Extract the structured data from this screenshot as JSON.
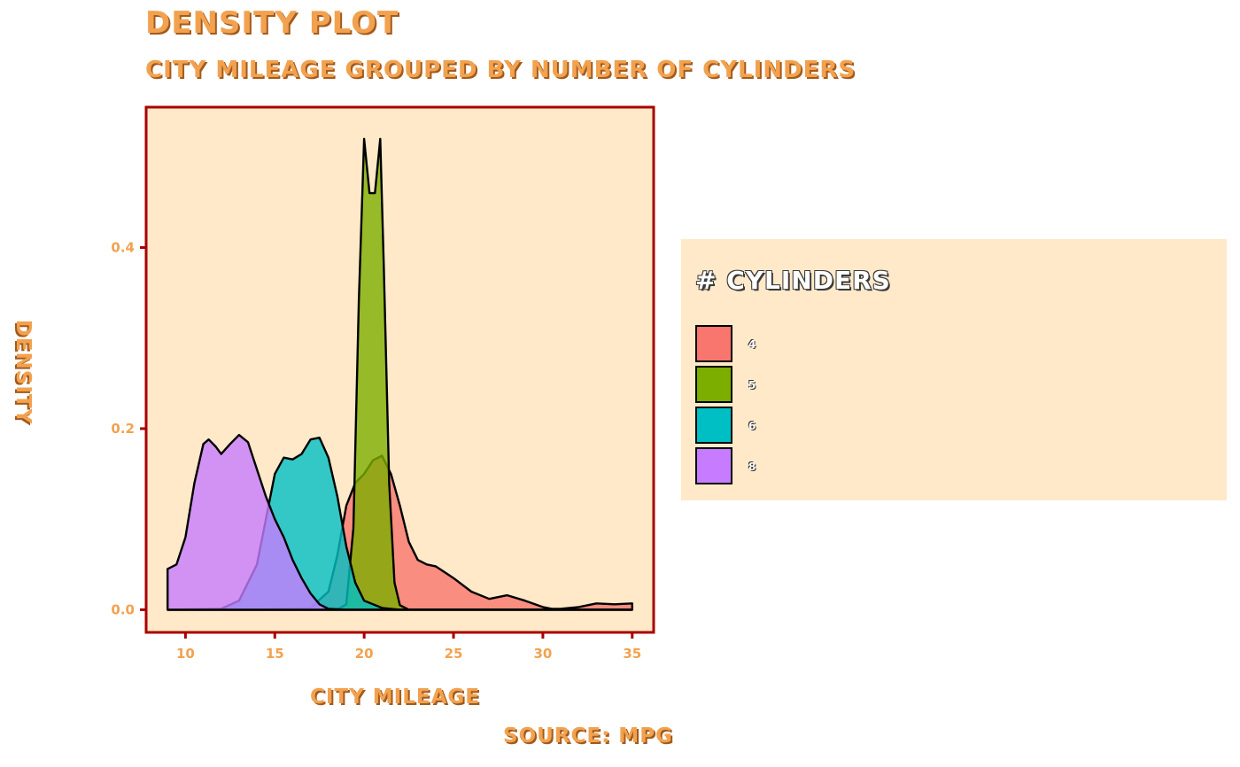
{
  "chart_data": {
    "type": "area",
    "title": "Density Plot",
    "subtitle": "City Mileage Grouped by Number of Cylinders",
    "xlabel": "City Mileage",
    "ylabel": "Density",
    "caption": "Source: mpg",
    "xlim": [
      7.8,
      36.2
    ],
    "ylim": [
      -0.025,
      0.555
    ],
    "x_ticks": [
      10,
      15,
      20,
      25,
      30,
      35
    ],
    "y_ticks": [
      0.0,
      0.2,
      0.4
    ],
    "y_tick_labels": [
      "0.0",
      "0.2",
      "0.4"
    ],
    "grid": false,
    "legend_position": "right",
    "legend_title": "# Cylinders",
    "series": [
      {
        "name": "4",
        "color": "#f8766d",
        "x": [
          9,
          14,
          17,
          18,
          18.5,
          19,
          19.5,
          20,
          20.5,
          21,
          21.5,
          22,
          22.5,
          23,
          23.5,
          24,
          25,
          26,
          27,
          28,
          29,
          30,
          30.5,
          31,
          32,
          33,
          34,
          35
        ],
        "y": [
          0,
          0,
          0.002,
          0.02,
          0.06,
          0.115,
          0.14,
          0.15,
          0.165,
          0.17,
          0.15,
          0.115,
          0.075,
          0.055,
          0.05,
          0.048,
          0.035,
          0.02,
          0.012,
          0.016,
          0.01,
          0.003,
          0.001,
          0.001,
          0.003,
          0.007,
          0.006,
          0.007
        ]
      },
      {
        "name": "5",
        "color": "#7cae00",
        "x": [
          9,
          18.5,
          19,
          19.4,
          19.7,
          20,
          20.3,
          20.6,
          20.9,
          21.1,
          21.4,
          21.7,
          22,
          22.5,
          35
        ],
        "y": [
          0,
          0,
          0.006,
          0.09,
          0.34,
          0.52,
          0.46,
          0.46,
          0.52,
          0.38,
          0.14,
          0.03,
          0.005,
          0,
          0
        ]
      },
      {
        "name": "6",
        "color": "#00bfc4",
        "x": [
          9,
          12,
          13,
          14,
          14.5,
          15,
          15.5,
          16,
          16.5,
          17,
          17.5,
          18,
          18.5,
          19,
          19.5,
          20,
          21,
          22,
          35
        ],
        "y": [
          0,
          0.001,
          0.01,
          0.05,
          0.1,
          0.15,
          0.168,
          0.166,
          0.172,
          0.188,
          0.19,
          0.168,
          0.125,
          0.07,
          0.03,
          0.01,
          0.002,
          0,
          0
        ]
      },
      {
        "name": "8",
        "color": "#c77cff",
        "x": [
          9,
          9.5,
          10,
          10.5,
          11,
          11.3,
          11.7,
          12,
          12.5,
          13,
          13.5,
          14,
          14.5,
          15,
          15.5,
          16,
          16.5,
          17,
          17.5,
          18,
          19,
          20,
          35
        ],
        "y": [
          0.045,
          0.05,
          0.08,
          0.14,
          0.183,
          0.188,
          0.18,
          0.172,
          0.183,
          0.193,
          0.185,
          0.155,
          0.125,
          0.1,
          0.08,
          0.055,
          0.035,
          0.018,
          0.006,
          0.001,
          0,
          0,
          0
        ]
      }
    ]
  }
}
